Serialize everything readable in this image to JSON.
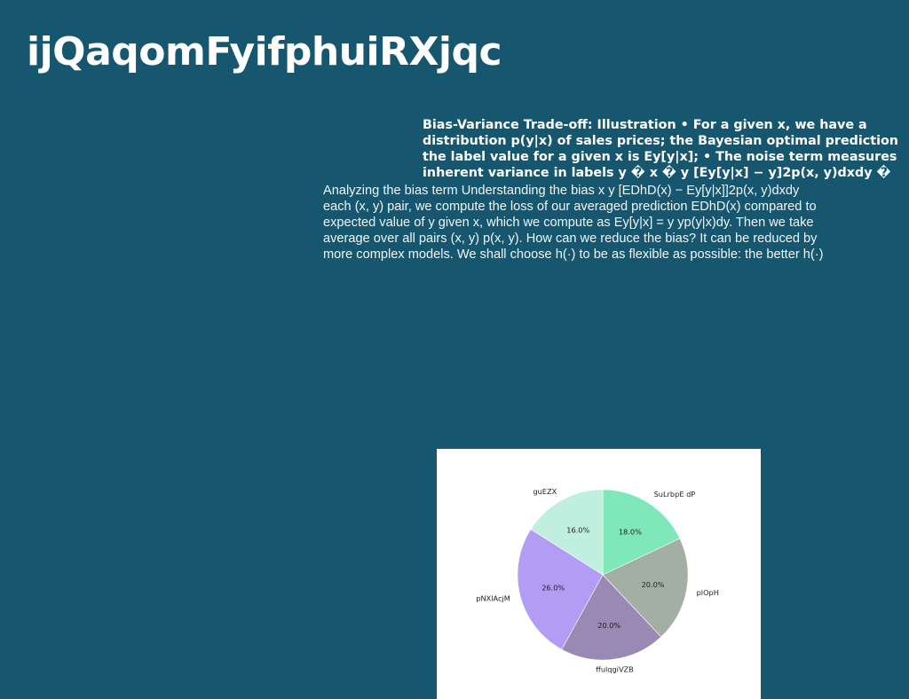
{
  "slide": {
    "title": "ijQaqomFyifphuiRXjqc"
  },
  "heading": {
    "lines": [
      "Bias-Variance Trade-off: Illustration • For a given x, we have a",
      "distribution p(y|x) of sales prices; the Bayesian optimal prediction",
      "the label value for a given x is Ey[y|x]; • The noise term measures",
      "inherent variance in labels y � x � y [Ey[y|x] − y]2p(x, y)dxdy �"
    ]
  },
  "body": {
    "lines": [
      "Analyzing the bias term Understanding the bias  x  y [EDhD(x) − Ey[y|x]]2p(x, y)dxdy",
      "each (x, y) pair, we compute the loss of our averaged prediction EDhD(x) compared to",
      "expected value of y given x, which we compute as Ey[y|x] =  y yp(y|x)dy. Then we take",
      "average over all pairs (x, y)  p(x, y). How can we reduce the bias? It can be reduced by",
      "more complex models. We shall choose h(·) to be as flexible as possible: the better h(·)"
    ]
  },
  "chart_data": {
    "type": "pie",
    "title": "",
    "start_angle_deg": 90,
    "direction": "clockwise",
    "slices": [
      {
        "label": "SuLrbpE dP",
        "value": 18.0,
        "pct_text": "18.0%",
        "color": "#7fe8b8"
      },
      {
        "label": "plOpH",
        "value": 20.0,
        "pct_text": "20.0%",
        "color": "#a3aea5"
      },
      {
        "label": "ffulqgiVZB",
        "value": 20.0,
        "pct_text": "20.0%",
        "color": "#9a88b5"
      },
      {
        "label": "pNXlAcjM",
        "value": 26.0,
        "pct_text": "26.0%",
        "color": "#b39df4"
      },
      {
        "label": "guEZX",
        "value": 16.0,
        "pct_text": "16.0%",
        "color": "#c0eedf"
      }
    ]
  }
}
